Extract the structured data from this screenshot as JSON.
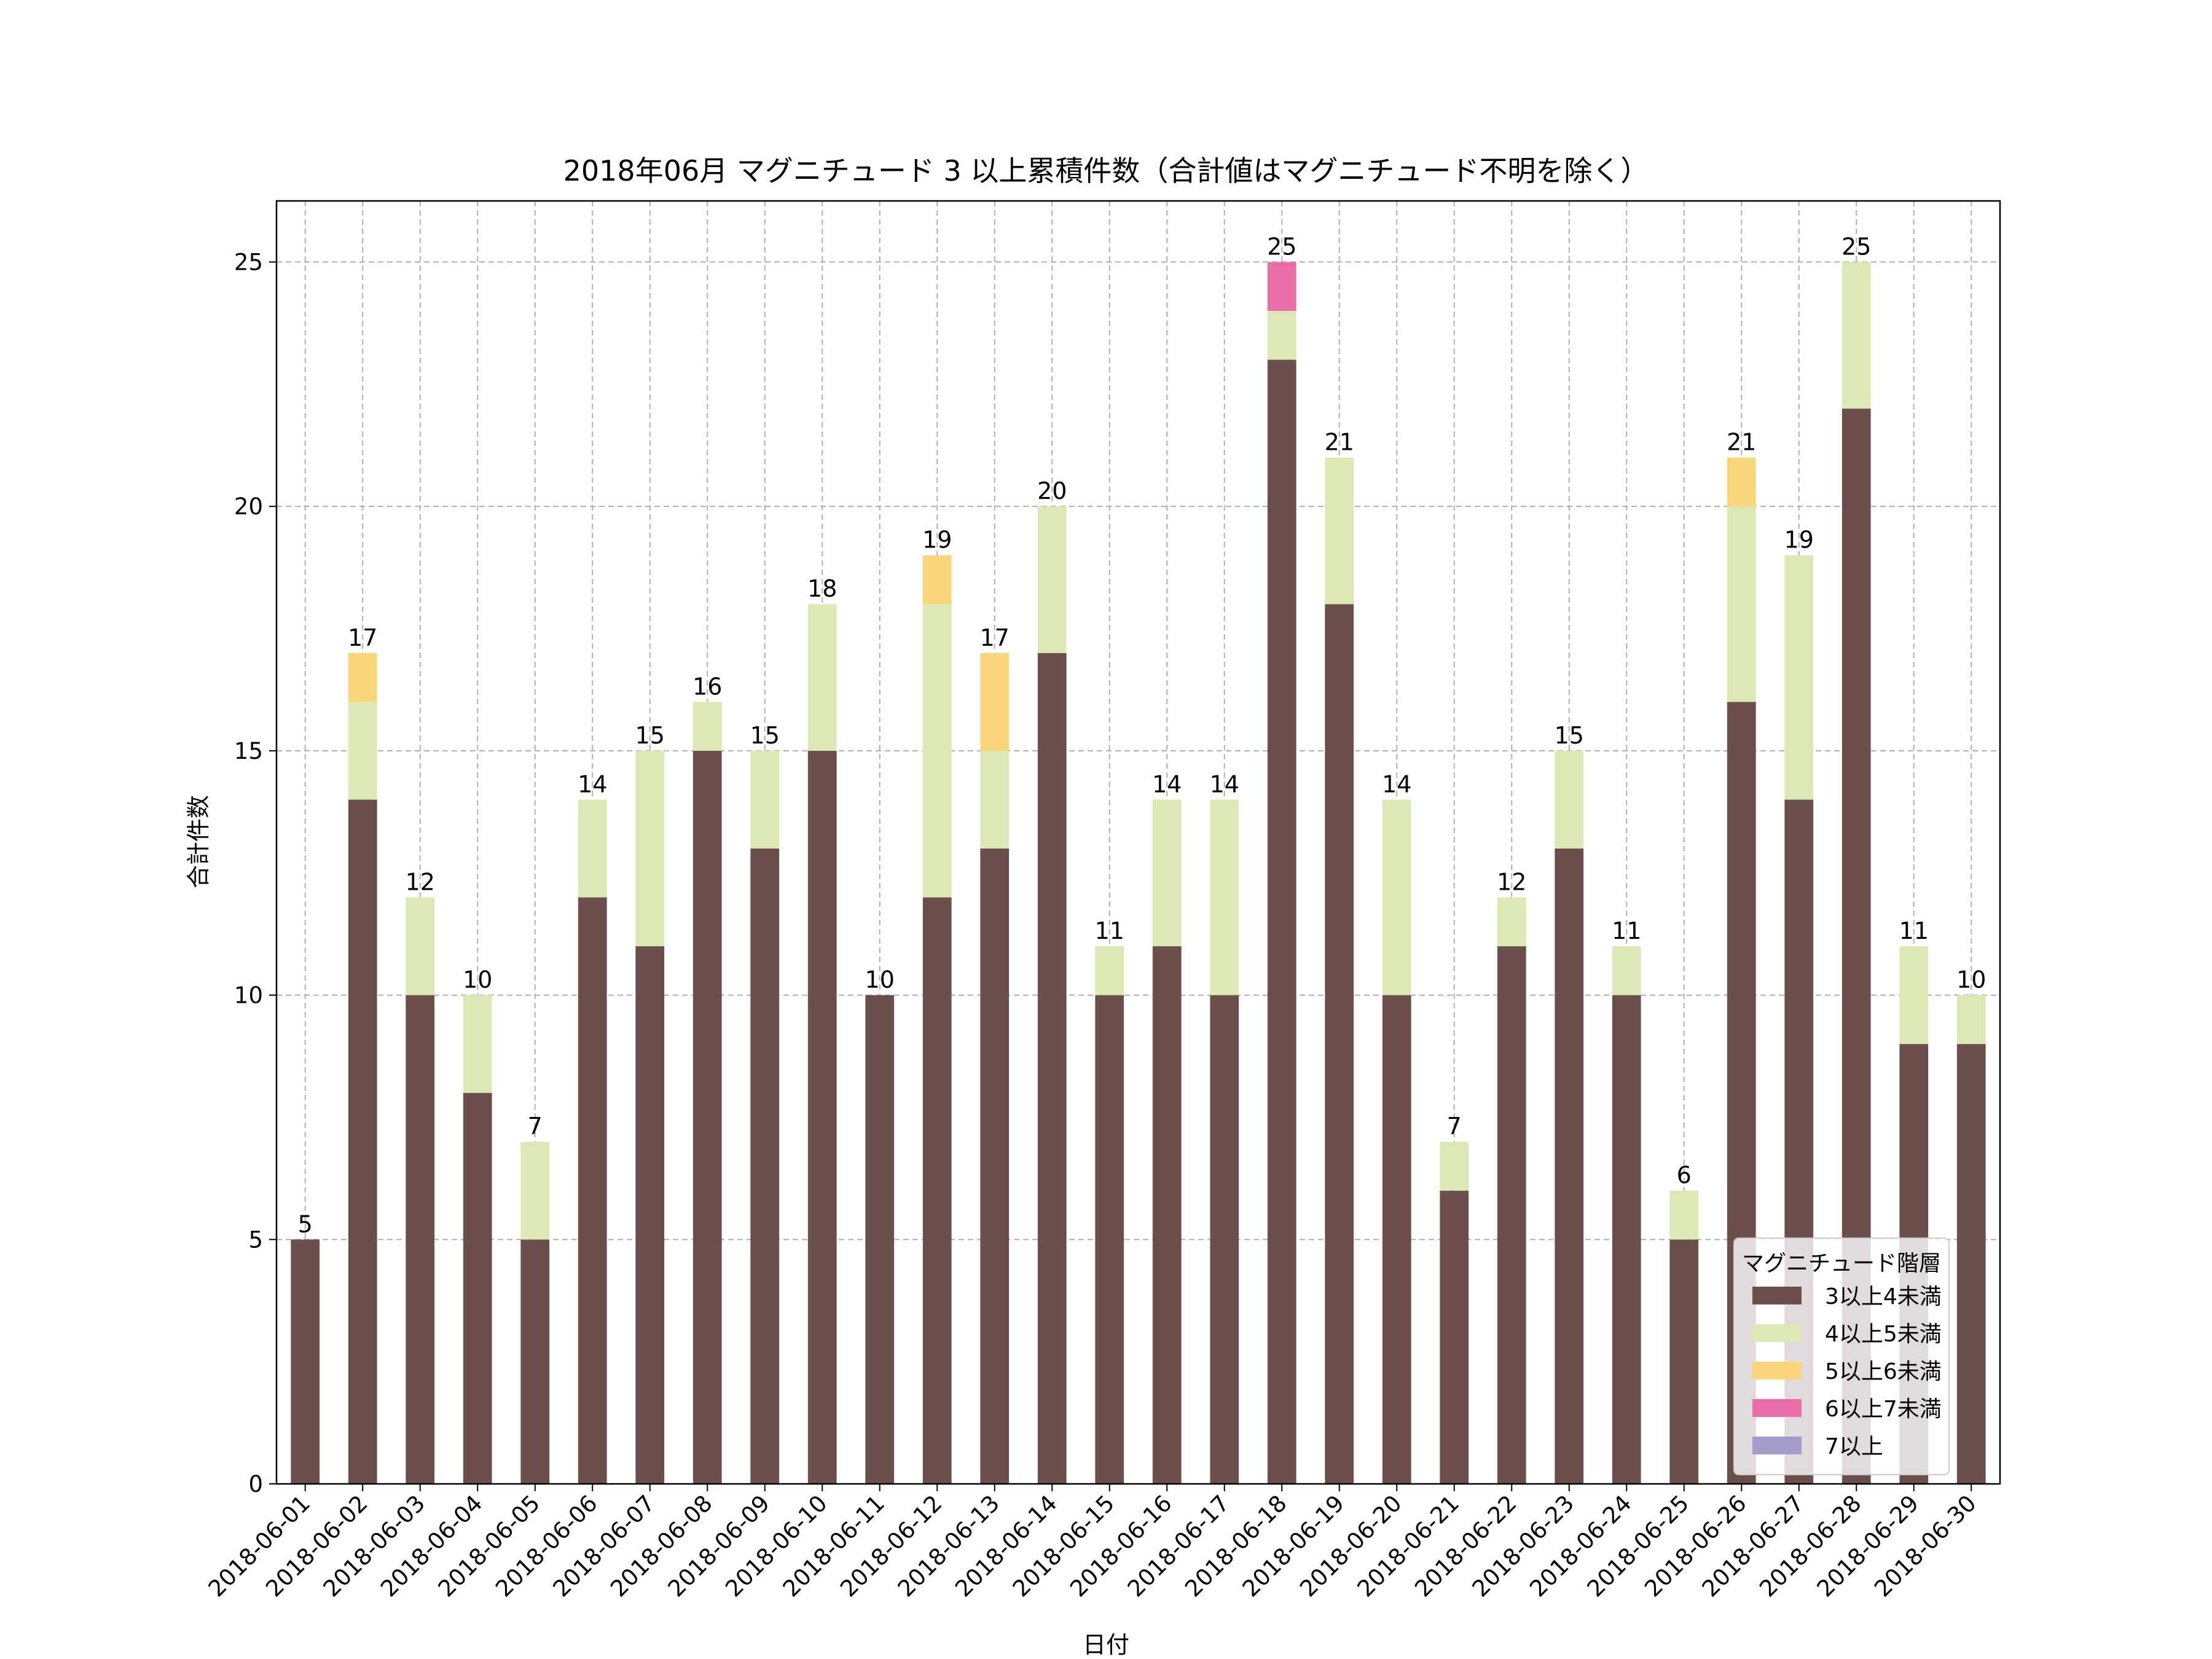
{
  "chart_data": {
    "type": "bar",
    "stacked": true,
    "title": "2018年06月 マグニチュード 3 以上累積件数（合計値はマグニチュード不明を除く）",
    "xlabel": "日付",
    "ylabel": "合計件数",
    "ylim": [
      0,
      26.25
    ],
    "yticks": [
      0,
      5,
      10,
      15,
      20,
      25
    ],
    "grid": true,
    "categories": [
      "2018-06-01",
      "2018-06-02",
      "2018-06-03",
      "2018-06-04",
      "2018-06-05",
      "2018-06-06",
      "2018-06-07",
      "2018-06-08",
      "2018-06-09",
      "2018-06-10",
      "2018-06-11",
      "2018-06-12",
      "2018-06-13",
      "2018-06-14",
      "2018-06-15",
      "2018-06-16",
      "2018-06-17",
      "2018-06-18",
      "2018-06-19",
      "2018-06-20",
      "2018-06-21",
      "2018-06-22",
      "2018-06-23",
      "2018-06-24",
      "2018-06-25",
      "2018-06-26",
      "2018-06-27",
      "2018-06-28",
      "2018-06-29",
      "2018-06-30"
    ],
    "series": [
      {
        "name": "3以上4未満",
        "color": "#6b4f4a",
        "values": [
          5,
          14,
          10,
          8,
          5,
          12,
          11,
          15,
          13,
          15,
          10,
          12,
          13,
          17,
          10,
          11,
          10,
          23,
          18,
          10,
          6,
          11,
          13,
          10,
          5,
          16,
          14,
          22,
          9,
          9
        ]
      },
      {
        "name": "4以上5未満",
        "color": "#dde9b4",
        "values": [
          0,
          2,
          2,
          2,
          2,
          2,
          4,
          1,
          2,
          3,
          0,
          6,
          2,
          3,
          1,
          3,
          4,
          1,
          3,
          4,
          1,
          1,
          2,
          1,
          1,
          4,
          5,
          3,
          2,
          1
        ]
      },
      {
        "name": "5以上6未満",
        "color": "#f9d67a",
        "values": [
          0,
          1,
          0,
          0,
          0,
          0,
          0,
          0,
          0,
          0,
          0,
          1,
          2,
          0,
          0,
          0,
          0,
          0,
          0,
          0,
          0,
          0,
          0,
          0,
          0,
          1,
          0,
          0,
          0,
          0
        ]
      },
      {
        "name": "6以上7未満",
        "color": "#eb6da7",
        "values": [
          0,
          0,
          0,
          0,
          0,
          0,
          0,
          0,
          0,
          0,
          0,
          0,
          0,
          0,
          0,
          0,
          0,
          1,
          0,
          0,
          0,
          0,
          0,
          0,
          0,
          0,
          0,
          0,
          0,
          0
        ]
      },
      {
        "name": "7以上",
        "color": "#a59ccc",
        "values": [
          0,
          0,
          0,
          0,
          0,
          0,
          0,
          0,
          0,
          0,
          0,
          0,
          0,
          0,
          0,
          0,
          0,
          0,
          0,
          0,
          0,
          0,
          0,
          0,
          0,
          0,
          0,
          0,
          0,
          0
        ]
      }
    ],
    "totals": [
      5,
      17,
      12,
      10,
      7,
      14,
      15,
      16,
      15,
      18,
      10,
      19,
      17,
      20,
      11,
      14,
      14,
      25,
      21,
      14,
      7,
      12,
      15,
      11,
      6,
      21,
      19,
      25,
      11,
      10
    ],
    "legend": {
      "title": "マグニチュード階層",
      "placement": "lower-right"
    }
  }
}
